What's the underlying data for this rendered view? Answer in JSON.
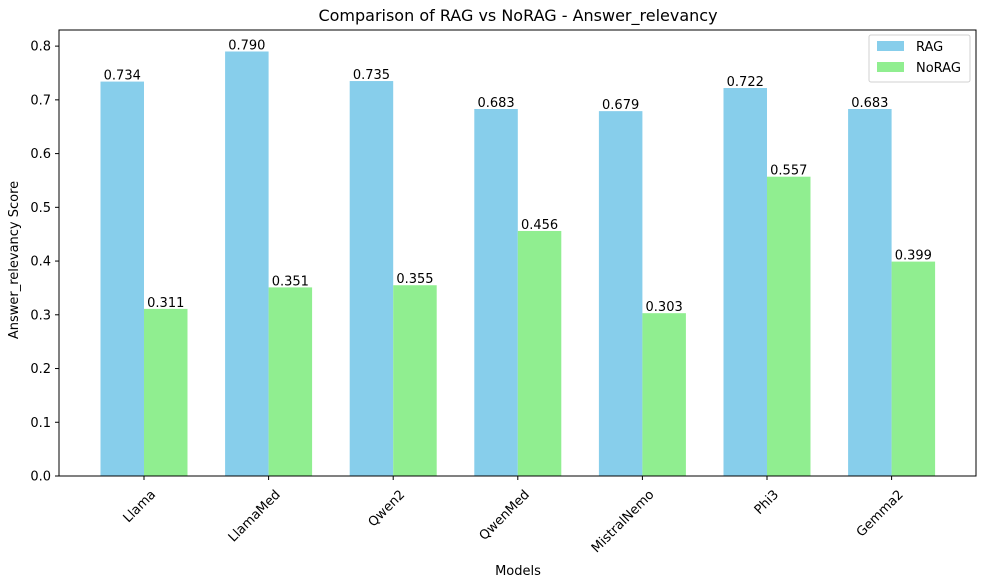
{
  "chart_data": {
    "type": "bar",
    "title": "Comparison of RAG vs NoRAG - Answer_relevancy",
    "xlabel": "Models",
    "ylabel": "Answer_relevancy Score",
    "categories": [
      "Llama",
      "LlamaMed",
      "Qwen2",
      "QwenMed",
      "MistralNemo",
      "Phi3",
      "Gemma2"
    ],
    "series": [
      {
        "name": "RAG",
        "color": "#87CEEB",
        "values": [
          0.734,
          0.79,
          0.735,
          0.683,
          0.679,
          0.722,
          0.683
        ],
        "labels": [
          "0.734",
          "0.790",
          "0.735",
          "0.683",
          "0.679",
          "0.722",
          "0.683"
        ]
      },
      {
        "name": "NoRAG",
        "color": "#90EE90",
        "values": [
          0.311,
          0.351,
          0.355,
          0.456,
          0.303,
          0.557,
          0.399
        ],
        "labels": [
          "0.311",
          "0.351",
          "0.355",
          "0.456",
          "0.303",
          "0.557",
          "0.399"
        ]
      }
    ],
    "ylim": [
      0,
      0.83
    ],
    "yticks": [
      "0.0",
      "0.1",
      "0.2",
      "0.3",
      "0.4",
      "0.5",
      "0.6",
      "0.7",
      "0.8"
    ],
    "grid": false,
    "legend_position": "top-right"
  }
}
